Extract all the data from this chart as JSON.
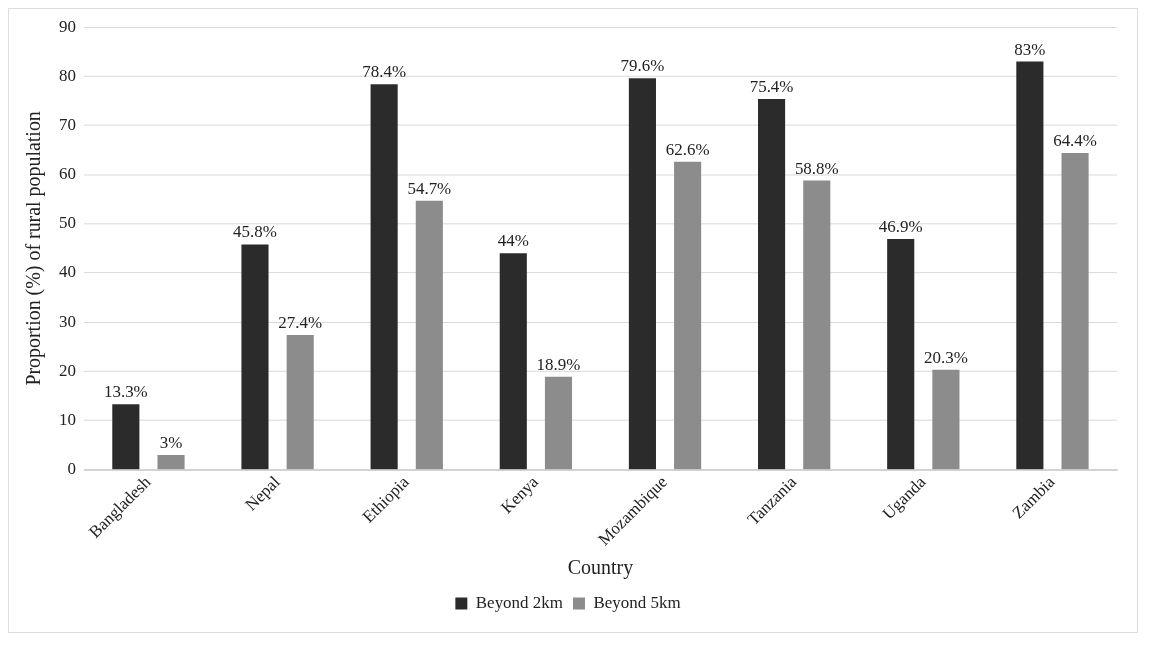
{
  "chart_data": {
    "type": "bar",
    "xlabel": "Country",
    "ylabel": "Proportion (%) of rural population",
    "categories": [
      "Bangladesh",
      "Nepal",
      "Ethiopia",
      "Kenya",
      "Mozambique",
      "Tanzania",
      "Uganda",
      "Zambia"
    ],
    "series": [
      {
        "name": "Beyond 2km",
        "color": "#2b2b2b",
        "values": [
          13.3,
          45.8,
          78.4,
          44,
          79.6,
          75.4,
          46.9,
          83
        ],
        "value_labels": [
          "13.3%",
          "45.8%",
          "78.4%",
          "44%",
          "79.6%",
          "75.4%",
          "46.9%",
          "83%"
        ]
      },
      {
        "name": "Beyond 5km",
        "color": "#8c8c8c",
        "values": [
          3,
          27.4,
          54.7,
          18.9,
          62.6,
          58.8,
          20.3,
          64.4
        ],
        "value_labels": [
          "3%",
          "27.4%",
          "54.7%",
          "18.9%",
          "62.6%",
          "58.8%",
          "20.3%",
          "64.4%"
        ]
      }
    ],
    "ylim": [
      0,
      90
    ],
    "yticks": [
      0,
      10,
      20,
      30,
      40,
      50,
      60,
      70,
      80,
      90
    ],
    "grid": "y",
    "legend": "bottom"
  }
}
